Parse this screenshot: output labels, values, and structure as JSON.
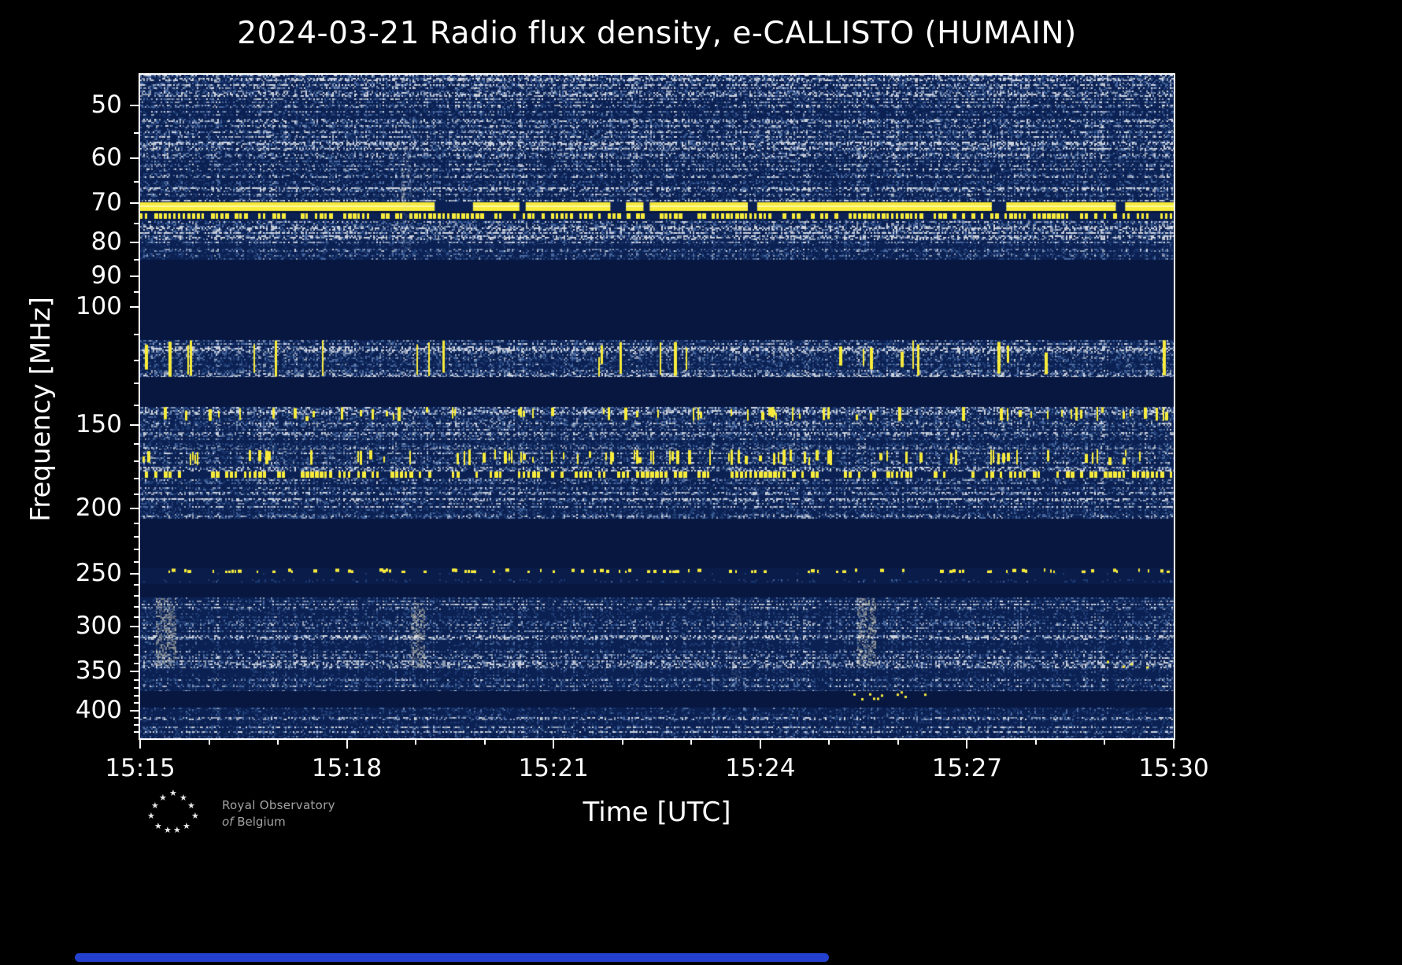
{
  "page": {
    "background": "#000000"
  },
  "chart_data": {
    "type": "heatmap",
    "title": "2024-03-21 Radio flux density, e-CALLISTO (HUMAIN)",
    "xlabel": "Time [UTC]",
    "ylabel": "Frequency [MHz]",
    "x_ticks": [
      "15:15",
      "15:18",
      "15:21",
      "15:24",
      "15:27",
      "15:30"
    ],
    "x_minor_ticks_every_minutes": 1,
    "x_major_ticks_every_minutes": 3,
    "time_range_utc": [
      "15:15",
      "15:30"
    ],
    "y_scale": "log",
    "y_axis_inverted_low_freq_on_top": true,
    "freq_range_mhz": [
      45,
      440
    ],
    "y_major_ticks": [
      50,
      60,
      70,
      80,
      90,
      100,
      150,
      200,
      250,
      300,
      350,
      400
    ],
    "y_minor_ticks": [
      45,
      55,
      65,
      75,
      85,
      95,
      110,
      120,
      130,
      140,
      160,
      170,
      180,
      190,
      210,
      220,
      230,
      240,
      260,
      270,
      280,
      290,
      310,
      320,
      330,
      340,
      360,
      370,
      380,
      390,
      410,
      420,
      430
    ],
    "grid": false,
    "legend": "none",
    "colormap": {
      "blank_band": "#071740",
      "noise_base": "#0c2153",
      "noise_blue_mid": "#1d3c74",
      "noise_blue_light": "#47679e",
      "noise_gray": "#8d9ab1",
      "noise_bright": "#ccd2dd",
      "signal_yellow": "#f7eb3c",
      "event_cream": "#e9e2c0",
      "frame": "#ffffff"
    },
    "bands": [
      {
        "f0": 45,
        "f1": 48,
        "kind": "noise",
        "gray": 0.2
      },
      {
        "f0": 48,
        "f1": 56,
        "kind": "noise",
        "gray": 0.1
      },
      {
        "f0": 56,
        "f1": 58.5,
        "kind": "noise",
        "gray": 0.18
      },
      {
        "f0": 58.5,
        "f1": 69.6,
        "kind": "noise",
        "gray": 0.09
      },
      {
        "f0": 69.8,
        "f1": 71.8,
        "kind": "yellow_line",
        "gaps": [
          [
            0.285,
            0.322
          ],
          [
            0.367,
            0.373
          ],
          [
            0.455,
            0.47
          ],
          [
            0.487,
            0.493
          ],
          [
            0.588,
            0.597
          ],
          [
            0.824,
            0.838
          ],
          [
            0.944,
            0.953
          ]
        ]
      },
      {
        "f0": 72.4,
        "f1": 73.8,
        "kind": "yellow_dotted",
        "prob": 0.72
      },
      {
        "f0": 74,
        "f1": 80.5,
        "kind": "noise",
        "gray": 0.17
      },
      {
        "f0": 80.5,
        "f1": 85,
        "kind": "noise",
        "gray": 0.08
      },
      {
        "f0": 85,
        "f1": 112,
        "kind": "blank"
      },
      {
        "f0": 112,
        "f1": 127,
        "kind": "noise",
        "gray": 0.16,
        "yellow": 0.06
      },
      {
        "f0": 127,
        "f1": 141,
        "kind": "blank"
      },
      {
        "f0": 141,
        "f1": 148,
        "kind": "noise",
        "gray": 0.15,
        "yellow": 0.16
      },
      {
        "f0": 148,
        "f1": 152,
        "kind": "noise",
        "gray": 0.16
      },
      {
        "f0": 152,
        "f1": 161,
        "kind": "noise",
        "gray": 0.09
      },
      {
        "f0": 161,
        "f1": 163,
        "kind": "noise",
        "gray": 0.15
      },
      {
        "f0": 163,
        "f1": 172,
        "kind": "noise",
        "gray": 0.14,
        "yellow": 0.2
      },
      {
        "f0": 172,
        "f1": 176,
        "kind": "noise",
        "gray": 0.15
      },
      {
        "f0": 176,
        "f1": 179.5,
        "kind": "yellow_dotted",
        "prob": 0.55
      },
      {
        "f0": 179.5,
        "f1": 207,
        "kind": "noise",
        "gray": 0.08
      },
      {
        "f0": 207,
        "f1": 245,
        "kind": "blank"
      },
      {
        "f0": 245,
        "f1": 249,
        "kind": "yellow_sparse",
        "prob": 0.22
      },
      {
        "f0": 249,
        "f1": 259,
        "kind": "noise",
        "gray": 0.05,
        "faint": true
      },
      {
        "f0": 259,
        "f1": 271,
        "kind": "blank"
      },
      {
        "f0": 271,
        "f1": 374,
        "kind": "noise",
        "gray": 0.07
      },
      {
        "f0": 374,
        "f1": 396,
        "kind": "blank"
      },
      {
        "f0": 396,
        "f1": 414,
        "kind": "noise",
        "gray": 0.15
      },
      {
        "f0": 414,
        "f1": 440,
        "kind": "noise",
        "gray": 0.08
      }
    ],
    "events": [
      {
        "t0": 0.015,
        "t1": 0.034,
        "f0": 272,
        "f1": 342,
        "kind": "bright"
      },
      {
        "t0": 0.252,
        "t1": 0.262,
        "f0": 57,
        "f1": 82,
        "kind": "faint"
      },
      {
        "t0": 0.2525,
        "t1": 0.2555,
        "f0": 62,
        "f1": 70,
        "kind": "bright"
      },
      {
        "t0": 0.262,
        "t1": 0.276,
        "f0": 276,
        "f1": 345,
        "kind": "bright"
      },
      {
        "t0": 0.572,
        "t1": 0.58,
        "f0": 272,
        "f1": 368,
        "kind": "faint"
      },
      {
        "t0": 0.694,
        "t1": 0.712,
        "f0": 272,
        "f1": 342,
        "kind": "bright"
      },
      {
        "t0": 0.69,
        "t1": 0.76,
        "f0": 374,
        "f1": 386,
        "kind": "yellow_dots"
      },
      {
        "t0": 0.928,
        "t1": 0.976,
        "f0": 336,
        "f1": 350,
        "kind": "yellow_dots"
      }
    ]
  },
  "footer": {
    "brand_line1": "Royal Observatory",
    "brand_line2_prefix": "of",
    "brand_line2_name": "Belgium"
  }
}
